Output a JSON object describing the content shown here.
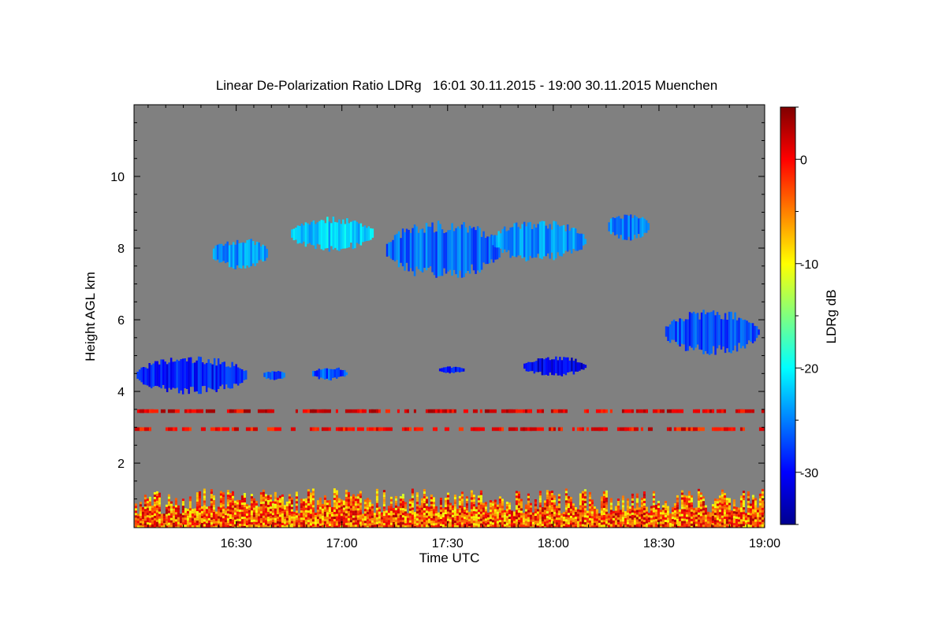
{
  "chart_data": {
    "type": "heatmap",
    "title": "Linear De-Polarization Ratio LDRg   16:01 30.11.2015 - 19:00 30.11.2015 Muenchen",
    "xlabel": "Time UTC",
    "ylabel": "Height AGL km",
    "colorbar_label": "LDRg dB",
    "x_range_hours": [
      16.0167,
      19.0
    ],
    "y_range_km": [
      0.2,
      12.0
    ],
    "color_range_db": [
      -35,
      5
    ],
    "x_ticks": [
      {
        "value": 16.5,
        "label": "16:30"
      },
      {
        "value": 17.0,
        "label": "17:00"
      },
      {
        "value": 17.5,
        "label": "17:30"
      },
      {
        "value": 18.0,
        "label": "18:00"
      },
      {
        "value": 18.5,
        "label": "18:30"
      },
      {
        "value": 19.0,
        "label": "19:00"
      }
    ],
    "y_ticks": [
      {
        "value": 2,
        "label": "2"
      },
      {
        "value": 4,
        "label": "4"
      },
      {
        "value": 6,
        "label": "6"
      },
      {
        "value": 8,
        "label": "8"
      },
      {
        "value": 10,
        "label": "10"
      }
    ],
    "colorbar_ticks": [
      {
        "value": 0,
        "label": "0"
      },
      {
        "value": -10,
        "label": "-10"
      },
      {
        "value": -20,
        "label": "-20"
      },
      {
        "value": -30,
        "label": "-30"
      }
    ],
    "background_color": "#808080",
    "colormap": "jet",
    "features": [
      {
        "name": "mid-level cloud",
        "t_start": 16.02,
        "t_end": 16.55,
        "h_bottom": 3.9,
        "h_top": 5.0,
        "ldr_db": -29
      },
      {
        "name": "mid-level cloud",
        "t_start": 16.62,
        "t_end": 16.73,
        "h_bottom": 4.3,
        "h_top": 4.6,
        "ldr_db": -27
      },
      {
        "name": "mid-level cloud",
        "t_start": 16.85,
        "t_end": 17.02,
        "h_bottom": 4.3,
        "h_top": 4.7,
        "ldr_db": -27
      },
      {
        "name": "mid-level cloud",
        "t_start": 17.45,
        "t_end": 17.58,
        "h_bottom": 4.5,
        "h_top": 4.7,
        "ldr_db": -30
      },
      {
        "name": "mid-level cloud",
        "t_start": 17.85,
        "t_end": 18.15,
        "h_bottom": 4.4,
        "h_top": 5.0,
        "ldr_db": -31
      },
      {
        "name": "cirrus",
        "t_start": 16.38,
        "t_end": 16.65,
        "h_bottom": 7.4,
        "h_top": 8.3,
        "ldr_db": -24
      },
      {
        "name": "cirrus",
        "t_start": 16.75,
        "t_end": 17.15,
        "h_bottom": 7.9,
        "h_top": 8.9,
        "ldr_db": -22
      },
      {
        "name": "cirrus",
        "t_start": 17.2,
        "t_end": 17.75,
        "h_bottom": 7.1,
        "h_top": 8.8,
        "ldr_db": -26
      },
      {
        "name": "cirrus",
        "t_start": 17.7,
        "t_end": 18.15,
        "h_bottom": 7.6,
        "h_top": 8.8,
        "ldr_db": -24
      },
      {
        "name": "cirrus",
        "t_start": 18.25,
        "t_end": 18.45,
        "h_bottom": 8.2,
        "h_top": 9.0,
        "ldr_db": -25
      },
      {
        "name": "mid-level cloud",
        "t_start": 18.52,
        "t_end": 18.97,
        "h_bottom": 5.0,
        "h_top": 6.3,
        "ldr_db": -27
      },
      {
        "name": "boundary layer aerosol",
        "t_start": 16.02,
        "t_end": 19.0,
        "h_bottom": 0.2,
        "h_top": 1.3,
        "ldr_db": -3
      },
      {
        "name": "noise band",
        "t_start": 16.02,
        "t_end": 19.0,
        "h_bottom": 2.9,
        "h_top": 3.0,
        "ldr_db": 0
      },
      {
        "name": "noise band",
        "t_start": 16.02,
        "t_end": 19.0,
        "h_bottom": 3.4,
        "h_top": 3.5,
        "ldr_db": 1
      }
    ]
  }
}
